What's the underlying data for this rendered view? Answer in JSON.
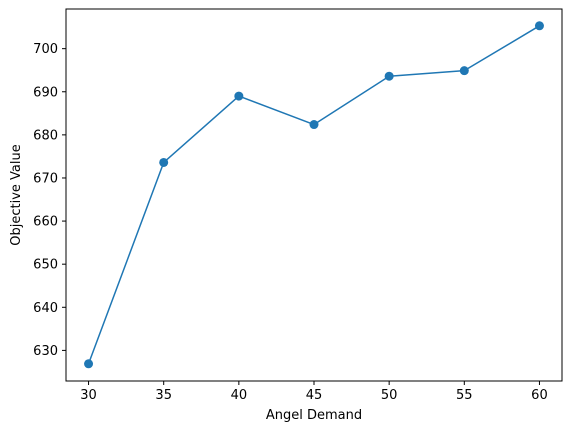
{
  "chart_data": {
    "type": "line",
    "title": "",
    "xlabel": "Angel Demand",
    "ylabel": "Objective Value",
    "x": [
      30,
      35,
      40,
      45,
      50,
      55,
      60
    ],
    "series": [
      {
        "values": [
          626.9,
          673.6,
          689.0,
          682.4,
          693.6,
          694.9,
          705.3
        ],
        "color": "#1f77b4",
        "marker": "circle"
      }
    ],
    "xticks": [
      "30",
      "35",
      "40",
      "45",
      "50",
      "55",
      "60"
    ],
    "yticks": [
      "630",
      "640",
      "650",
      "660",
      "670",
      "680",
      "690",
      "700"
    ],
    "xlim": [
      28.5,
      61.5
    ],
    "ylim": [
      622.9,
      709.2
    ],
    "grid": false,
    "legend": "none"
  }
}
